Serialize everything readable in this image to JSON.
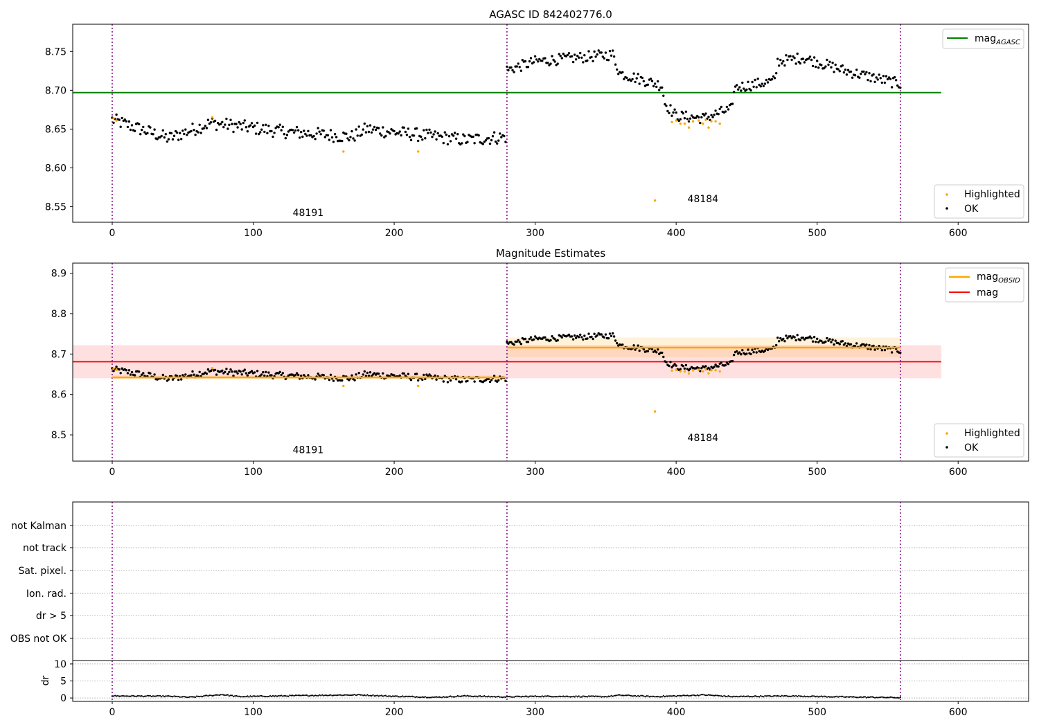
{
  "chart_data": [
    {
      "type": "scatter",
      "title": "AGASC ID 842402776.0",
      "xlim": [
        -28,
        650
      ],
      "ylim": [
        8.53,
        8.785
      ],
      "xticks": [
        0,
        100,
        200,
        300,
        400,
        500,
        600
      ],
      "yticks": [
        8.55,
        8.6,
        8.65,
        8.7,
        8.75
      ],
      "obs_boundaries": [
        0,
        280,
        559
      ],
      "obs_labels": [
        {
          "text": "48191",
          "x": 139,
          "y": 8.538
        },
        {
          "text": "48184",
          "x": 419,
          "y": 8.556
        }
      ],
      "lines": [
        {
          "name": "mag",
          "name_sub": "AGASC",
          "y": 8.697,
          "x_range": [
            -28,
            588
          ],
          "color": "#008000"
        }
      ],
      "segments": [
        {
          "start": 0,
          "end": 279,
          "level": 8.642,
          "noise": 0.006,
          "trend": [
            [
              0,
              8.662
            ],
            [
              40,
              8.638
            ],
            [
              70,
              8.658
            ],
            [
              120,
              8.647
            ],
            [
              170,
              8.64
            ],
            [
              180,
              8.65
            ],
            [
              250,
              8.636
            ],
            [
              279,
              8.64
            ]
          ]
        },
        {
          "start": 280,
          "end": 559,
          "level": 8.716,
          "noise": 0.005,
          "trend": [
            [
              280,
              8.726
            ],
            [
              300,
              8.737
            ],
            [
              355,
              8.746
            ],
            [
              360,
              8.722
            ],
            [
              390,
              8.706
            ],
            [
              392,
              8.683
            ],
            [
              400,
              8.667
            ],
            [
              420,
              8.664
            ],
            [
              432,
              8.672
            ],
            [
              440,
              8.676
            ],
            [
              441,
              8.703
            ],
            [
              470,
              8.712
            ],
            [
              472,
              8.737
            ],
            [
              490,
              8.742
            ],
            [
              520,
              8.725
            ],
            [
              559,
              8.708
            ]
          ]
        }
      ],
      "highlighted": [
        [
          1,
          8.664
        ],
        [
          3,
          8.661
        ],
        [
          71,
          8.665
        ],
        [
          164,
          8.621
        ],
        [
          217,
          8.621
        ],
        [
          385,
          8.558
        ],
        [
          397,
          8.659
        ],
        [
          400,
          8.661
        ],
        [
          403,
          8.657
        ],
        [
          406,
          8.657
        ],
        [
          409,
          8.652
        ],
        [
          412,
          8.66
        ],
        [
          416,
          8.661
        ],
        [
          419,
          8.657
        ],
        [
          421,
          8.662
        ],
        [
          423,
          8.652
        ],
        [
          425,
          8.66
        ],
        [
          428,
          8.66
        ],
        [
          431,
          8.657
        ]
      ],
      "legend_upper": [
        {
          "label": "mag",
          "sub": "AGASC",
          "color": "#008000",
          "kind": "line"
        }
      ],
      "legend_lower": [
        {
          "label": "Highlighted",
          "color": "#ffa500",
          "kind": "dot"
        },
        {
          "label": "OK",
          "color": "#000000",
          "kind": "dot"
        }
      ]
    },
    {
      "type": "scatter",
      "title": "Magnitude Estimates",
      "xlim": [
        -28,
        650
      ],
      "ylim": [
        8.435,
        8.925
      ],
      "xticks": [
        0,
        100,
        200,
        300,
        400,
        500,
        600
      ],
      "yticks": [
        8.5,
        8.6,
        8.7,
        8.8,
        8.9
      ],
      "obs_boundaries": [
        0,
        280,
        559
      ],
      "obs_labels": [
        {
          "text": "48191",
          "x": 139,
          "y": 8.455
        },
        {
          "text": "48184",
          "x": 419,
          "y": 8.485
        }
      ],
      "lines": [
        {
          "name": "mag",
          "y": 8.681,
          "band": [
            8.64,
            8.722
          ],
          "x_range": [
            -28,
            588
          ],
          "color": "#ff0000"
        }
      ],
      "obsid_mags": [
        {
          "x_range": [
            0,
            279
          ],
          "y": 8.642,
          "band": [
            8.637,
            8.647
          ]
        },
        {
          "x_range": [
            280,
            559
          ],
          "y": 8.716,
          "band": [
            8.692,
            8.741
          ]
        }
      ],
      "legend_upper": [
        {
          "label": "mag",
          "sub": "OBSID",
          "color": "#ffa500",
          "kind": "line"
        },
        {
          "label": "mag",
          "sub": "",
          "color": "#ff0000",
          "kind": "line"
        }
      ],
      "legend_lower": [
        {
          "label": "Highlighted",
          "color": "#ffa500",
          "kind": "dot"
        },
        {
          "label": "OK",
          "color": "#000000",
          "kind": "dot"
        }
      ]
    },
    {
      "type": "scatter",
      "xlim": [
        -28,
        650
      ],
      "flag_labels": [
        "not Kalman",
        "not track",
        "Sat. pixel.",
        "Ion. rad.",
        "dr > 5",
        "OBS not OK"
      ],
      "obs_boundaries": [
        0,
        280,
        559
      ]
    },
    {
      "type": "line",
      "xlim": [
        -28,
        650
      ],
      "ylim": [
        -1,
        11
      ],
      "ylabel": "dr",
      "xticks": [
        0,
        100,
        200,
        300,
        400,
        500,
        600
      ],
      "yticks": [
        0,
        5,
        10
      ],
      "obs_boundaries": [
        0,
        280,
        559
      ],
      "dr_trend": [
        [
          0,
          0.6
        ],
        [
          40,
          0.5
        ],
        [
          55,
          0.2
        ],
        [
          78,
          1.0
        ],
        [
          90,
          0.4
        ],
        [
          150,
          0.8
        ],
        [
          175,
          0.9
        ],
        [
          200,
          0.5
        ],
        [
          230,
          0.2
        ],
        [
          250,
          0.6
        ],
        [
          279,
          0.3
        ],
        [
          300,
          0.5
        ],
        [
          350,
          0.4
        ],
        [
          360,
          0.8
        ],
        [
          385,
          0.4
        ],
        [
          400,
          0.6
        ],
        [
          420,
          0.9
        ],
        [
          440,
          0.4
        ],
        [
          480,
          0.6
        ],
        [
          520,
          0.3
        ],
        [
          559,
          0.1
        ]
      ]
    }
  ]
}
